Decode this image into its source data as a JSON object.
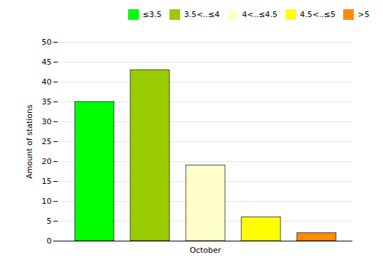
{
  "chart_data": {
    "type": "bar",
    "categories": [
      "October"
    ],
    "series": [
      {
        "name": "≤3.5",
        "color": "#00FF00",
        "values": [
          35
        ]
      },
      {
        "name": "3.5<..≤4",
        "color": "#99CC00",
        "values": [
          43
        ]
      },
      {
        "name": "4<..≤4.5",
        "color": "#FFFFCC",
        "values": [
          19
        ]
      },
      {
        "name": "4.5<..≤5",
        "color": "#FFFF00",
        "values": [
          6
        ]
      },
      {
        "name": ">5",
        "color": "#FF8C00",
        "values": [
          2
        ]
      }
    ],
    "ylabel": "Amount of stations",
    "ylim": [
      0,
      50
    ],
    "yticks": [
      0,
      5,
      10,
      15,
      20,
      25,
      30,
      35,
      40,
      45,
      50
    ],
    "grid": true,
    "legend": "upper right"
  }
}
